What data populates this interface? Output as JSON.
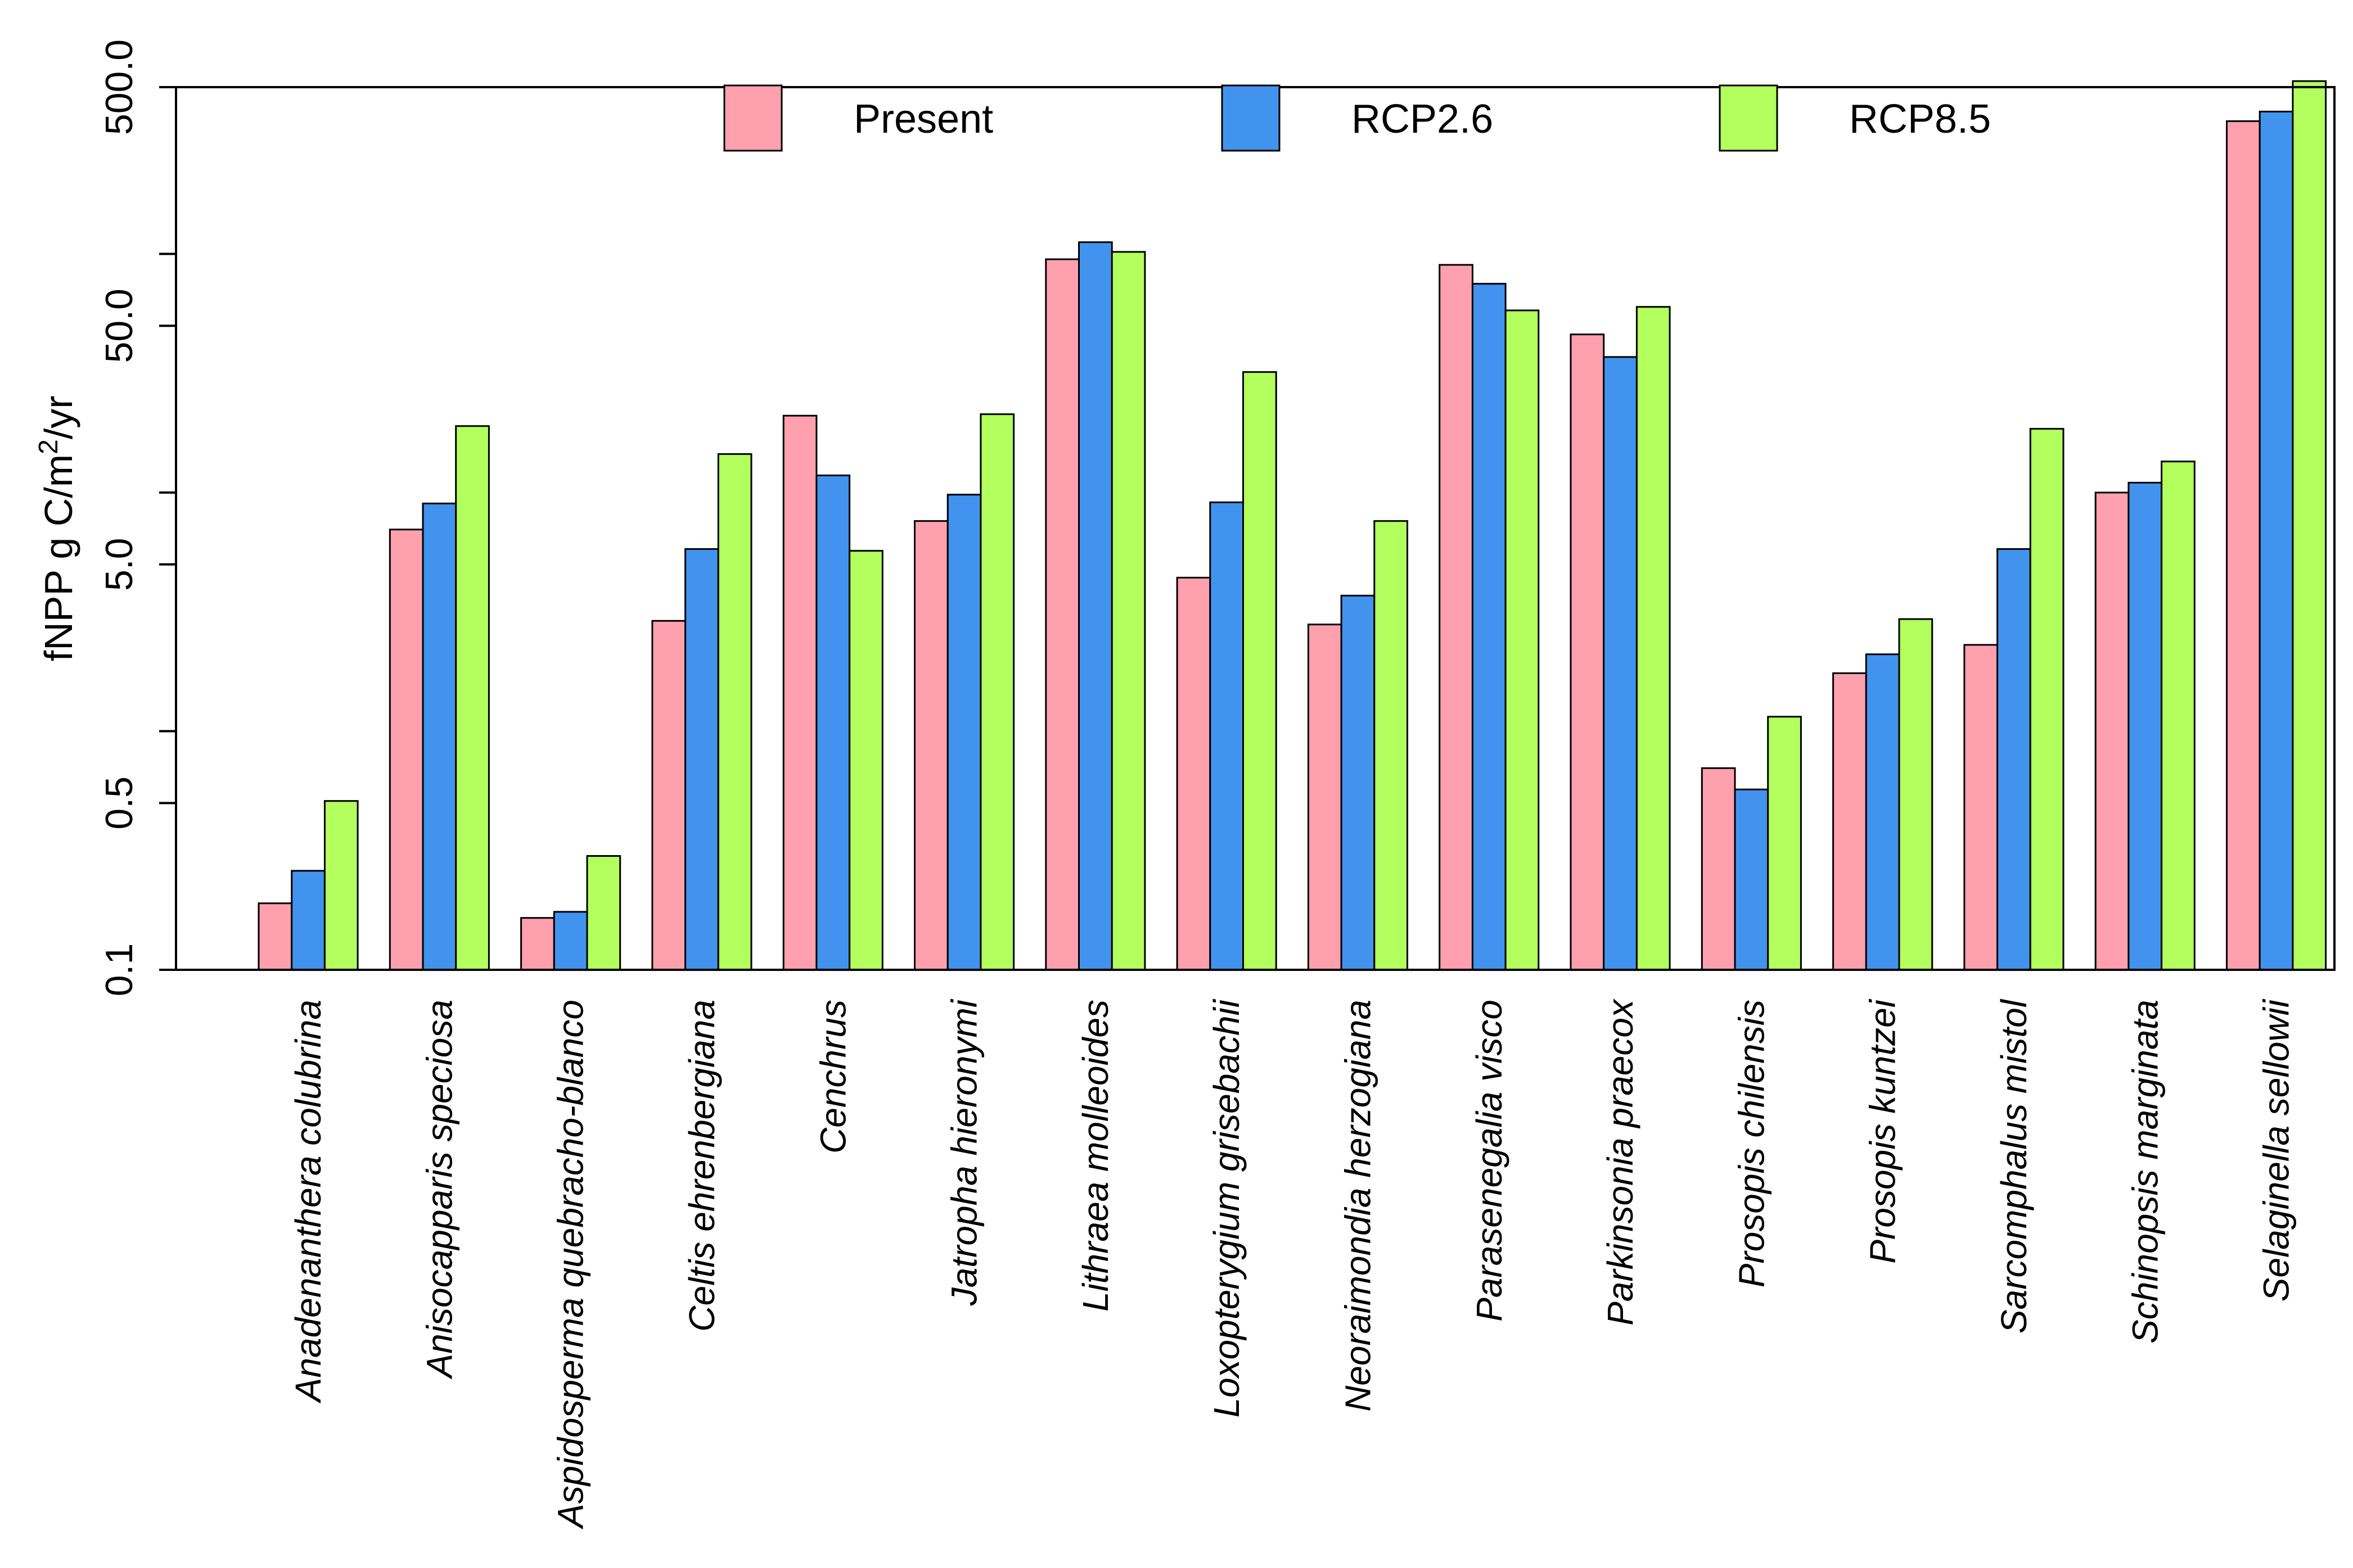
{
  "chart_data": {
    "type": "bar",
    "title": "",
    "xlabel": "",
    "ylabel": "fNPP g C/m²/yr",
    "ylabel_parts": {
      "main": "fNPP g C/m",
      "sup": "2",
      "tail": "/yr"
    },
    "y_scale": "log",
    "ylim": [
      0.1,
      500
    ],
    "y_ticks": [
      0.1,
      0.5,
      5.0,
      50.0,
      500.0
    ],
    "y_tick_labels": [
      "0.1",
      "0.5",
      "5.0",
      "50.0",
      "500.0"
    ],
    "y_minor_ticks": [
      1,
      10,
      100
    ],
    "legend_position": "top",
    "categories": [
      "Anadenanthera colubrina",
      "Anisocapparis speciosa",
      "Aspidosperma quebracho-blanco",
      "Celtis ehrenbergiana",
      "Cenchrus",
      "Jatropha hieronymi",
      "Lithraea molleoides",
      "Loxopterygium grisebachii",
      "Neoraimondia herzogiana",
      "Parasenegalia visco",
      "Parkinsonia praecox",
      "Prosopis chilensis",
      "Prosopis kuntzei",
      "Sarcomphalus mistol",
      "Schinopsis marginata",
      "Selaginella sellowii"
    ],
    "series": [
      {
        "name": "Present",
        "color": "#FFA0AE",
        "values": [
          0.19,
          7.0,
          0.165,
          2.9,
          21.0,
          7.6,
          95,
          4.4,
          2.8,
          90,
          46,
          0.7,
          1.75,
          2.3,
          10.0,
          360
        ]
      },
      {
        "name": "RCP2.6",
        "color": "#4193EE",
        "values": [
          0.26,
          9.0,
          0.175,
          5.8,
          11.8,
          9.8,
          112,
          9.1,
          3.7,
          75,
          37,
          0.57,
          2.1,
          5.8,
          11.0,
          395
        ]
      },
      {
        "name": "RCP8.5",
        "color": "#B2FF5D",
        "values": [
          0.51,
          19.0,
          0.3,
          14.5,
          5.7,
          21.3,
          102,
          32.0,
          7.6,
          58,
          60,
          1.15,
          2.95,
          18.5,
          13.5,
          530
        ]
      }
    ]
  }
}
